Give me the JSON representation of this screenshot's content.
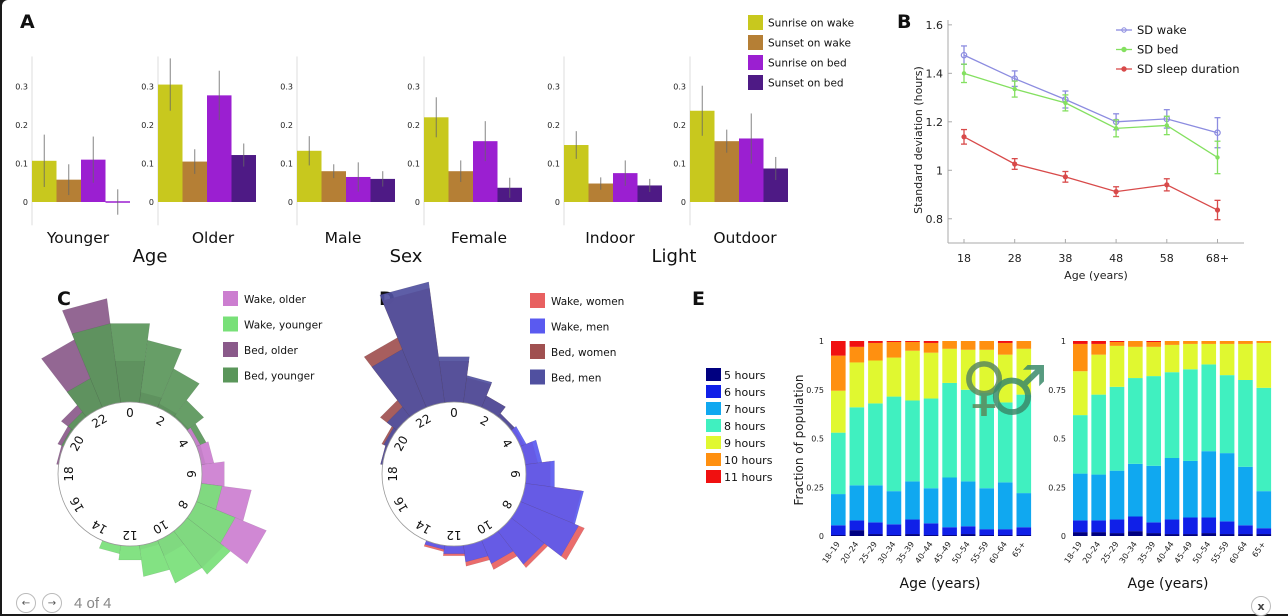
{
  "footer": {
    "prev_icon": "arrow-left-icon",
    "next_icon": "arrow-right-icon",
    "page_counter": "4 of 4",
    "close_icon": "close-icon",
    "prev_glyph": "←",
    "next_glyph": "→",
    "close_glyph": "x"
  },
  "panels": {
    "A": "A",
    "B": "B",
    "C": "C",
    "D": "D",
    "E": "E"
  },
  "chart_data": [
    {
      "id": "A",
      "type": "bar",
      "title": "",
      "ylim": [
        -0.05,
        0.37
      ],
      "yticks": [
        0,
        0.1,
        0.2,
        0.3
      ],
      "ytick_labels": [
        "0",
        "0.1",
        "0.2",
        "0.3"
      ],
      "legend": [
        "Sunrise on wake",
        "Sunset on wake",
        "Sunrise on bed",
        "Sunset on bed"
      ],
      "legend_placement": "top-right",
      "colors": [
        "#c8c81e",
        "#b57f35",
        "#9b1fd1",
        "#4e1a85"
      ],
      "groups": [
        {
          "factor": "Age",
          "categories": [
            {
              "label": "Younger",
              "values": [
                0.107,
                0.058,
                0.11,
                0.0
              ],
              "err": [
                0.068,
                0.04,
                0.06,
                0.033
              ]
            },
            {
              "label": "Older",
              "values": [
                0.305,
                0.105,
                0.277,
                0.122
              ],
              "err": [
                0.068,
                0.032,
                0.064,
                0.03
              ]
            }
          ]
        },
        {
          "factor": "Sex",
          "categories": [
            {
              "label": "Male",
              "values": [
                0.133,
                0.08,
                0.065,
                0.06
              ],
              "err": [
                0.038,
                0.018,
                0.038,
                0.02
              ]
            },
            {
              "label": "Female",
              "values": [
                0.22,
                0.08,
                0.158,
                0.037
              ],
              "err": [
                0.052,
                0.028,
                0.052,
                0.026
              ]
            }
          ]
        },
        {
          "factor": "Light",
          "categories": [
            {
              "label": "Indoor",
              "values": [
                0.148,
                0.048,
                0.075,
                0.043
              ],
              "err": [
                0.036,
                0.016,
                0.033,
                0.017
              ]
            },
            {
              "label": "Outdoor",
              "values": [
                0.237,
                0.158,
                0.165,
                0.087
              ],
              "err": [
                0.065,
                0.03,
                0.065,
                0.03
              ]
            }
          ]
        }
      ]
    },
    {
      "id": "B",
      "type": "line",
      "xlabel": "Age (years)",
      "ylabel": "Standard deviation  (hours)",
      "categories": [
        "18",
        "28",
        "38",
        "48",
        "58",
        "68+"
      ],
      "ylim": [
        0.7,
        1.62
      ],
      "yticks": [
        0.8,
        1,
        1.2,
        1.4,
        1.6
      ],
      "ytick_labels": [
        "0.8",
        "1",
        "1.2",
        "1.4",
        "1.6"
      ],
      "legend_placement": "top-right",
      "series": [
        {
          "name": "SD wake",
          "color": "#8c8ce0",
          "marker": "circle-open",
          "values": [
            1.475,
            1.378,
            1.292,
            1.2,
            1.212,
            1.155
          ],
          "err": [
            0.038,
            0.032,
            0.035,
            0.033,
            0.038,
            0.062
          ]
        },
        {
          "name": "SD bed",
          "color": "#84e060",
          "marker": "plus",
          "values": [
            1.4,
            1.335,
            1.278,
            1.173,
            1.185,
            1.053
          ],
          "err": [
            0.038,
            0.033,
            0.033,
            0.035,
            0.038,
            0.067
          ]
        },
        {
          "name": "SD sleep duration",
          "color": "#d84a4a",
          "marker": "filled",
          "values": [
            1.138,
            1.026,
            0.973,
            0.912,
            0.94,
            0.836
          ],
          "err": [
            0.03,
            0.022,
            0.022,
            0.02,
            0.025,
            0.04
          ]
        }
      ]
    },
    {
      "id": "C",
      "type": "polar-bar",
      "hour_labels": [
        "0",
        "2",
        "4",
        "6",
        "8",
        "10",
        "12",
        "14",
        "16",
        "18",
        "20",
        "22"
      ],
      "legend_placement": "top-right",
      "series": [
        {
          "name": "Wake, older",
          "color": "#cc7ed0",
          "values": [
            0,
            0,
            0,
            0,
            0.02,
            0.06,
            0.11,
            0.24,
            0.36,
            0.22,
            0.08,
            0.02,
            0,
            0,
            0,
            0,
            0,
            0,
            0,
            0,
            0,
            0,
            0,
            0
          ]
        },
        {
          "name": "Wake, younger",
          "color": "#78e078",
          "values": [
            0,
            0,
            0,
            0,
            0,
            0,
            0,
            0.1,
            0.2,
            0.26,
            0.22,
            0.15,
            0.07,
            0.04,
            0,
            0,
            0,
            0,
            0,
            0,
            0,
            0,
            0,
            0
          ]
        },
        {
          "name": "Bed, older",
          "color": "#8a5a8a",
          "values": [
            0.2,
            0.05,
            0.02,
            0.01,
            0,
            0,
            0,
            0,
            0,
            0,
            0,
            0,
            0,
            0,
            0,
            0,
            0,
            0,
            0,
            0.01,
            0.03,
            0.07,
            0.35,
            0.5
          ]
        },
        {
          "name": "Bed, younger",
          "color": "#5a965a",
          "values": [
            0.38,
            0.3,
            0.2,
            0.1,
            0.05,
            0.02,
            0,
            0,
            0,
            0,
            0,
            0,
            0,
            0,
            0,
            0,
            0,
            0,
            0,
            0,
            0.01,
            0.03,
            0.15,
            0.38
          ]
        }
      ]
    },
    {
      "id": "D",
      "type": "polar-bar",
      "hour_labels": [
        "0",
        "2",
        "4",
        "6",
        "8",
        "10",
        "12",
        "14",
        "16",
        "18",
        "20",
        "22"
      ],
      "legend_placement": "top-right",
      "series": [
        {
          "name": "Wake, women",
          "color": "#e86060",
          "values": [
            0,
            0,
            0,
            0,
            0.02,
            0.06,
            0.12,
            0.27,
            0.33,
            0.22,
            0.15,
            0.1,
            0.05,
            0.03,
            0,
            0,
            0,
            0,
            0,
            0,
            0,
            0,
            0,
            0
          ]
        },
        {
          "name": "Wake, men",
          "color": "#5a5af0",
          "values": [
            0,
            0,
            0,
            0,
            0.03,
            0.08,
            0.14,
            0.28,
            0.3,
            0.2,
            0.12,
            0.08,
            0.04,
            0.02,
            0,
            0,
            0,
            0,
            0,
            0,
            0,
            0,
            0,
            0
          ]
        },
        {
          "name": "Bed, women",
          "color": "#a05050",
          "values": [
            0.2,
            0.12,
            0.06,
            0.02,
            0.01,
            0,
            0,
            0,
            0,
            0,
            0,
            0,
            0,
            0,
            0,
            0,
            0,
            0,
            0,
            0.01,
            0.03,
            0.1,
            0.36,
            0.55
          ]
        },
        {
          "name": "Bed, men",
          "color": "#5050a0",
          "values": [
            0.22,
            0.13,
            0.06,
            0.02,
            0.01,
            0,
            0,
            0,
            0,
            0,
            0,
            0,
            0,
            0,
            0,
            0,
            0,
            0,
            0,
            0.01,
            0.02,
            0.06,
            0.3,
            0.58
          ]
        }
      ]
    },
    {
      "id": "E",
      "type": "bar",
      "stacked": true,
      "xlabel": "Age (years)",
      "ylabel": "Fraction of population",
      "ylim": [
        0,
        1
      ],
      "yticks": [
        0,
        0.25,
        0.5,
        0.75,
        1
      ],
      "ytick_labels": [
        "0",
        "0.25",
        "0.5",
        "0.75",
        "1"
      ],
      "categories": [
        "18–19",
        "20–24",
        "25–29",
        "30–34",
        "35–39",
        "40–44",
        "45–49",
        "50–54",
        "55–59",
        "60–64",
        "65+"
      ],
      "legend": [
        "5 hours",
        "6 hours",
        "7 hours",
        "8 hours",
        "9 hours",
        "10 hours",
        "11 hours"
      ],
      "legend_placement": "left",
      "colors": [
        "#000080",
        "#1020e8",
        "#10a8f0",
        "#40f0c0",
        "#e0f830",
        "#ff9010",
        "#f01010"
      ],
      "subplots": [
        {
          "name": "women",
          "symbol": "♀",
          "symbol_color": "#5a8a5a",
          "fractions": [
            [
              0.005,
              0.05,
              0.16,
              0.315,
              0.215,
              0.18,
              0.075
            ],
            [
              0.03,
              0.05,
              0.18,
              0.4,
              0.23,
              0.08,
              0.03
            ],
            [
              0.01,
              0.06,
              0.19,
              0.42,
              0.22,
              0.09,
              0.01
            ],
            [
              0.005,
              0.055,
              0.17,
              0.485,
              0.2,
              0.08,
              0.005
            ],
            [
              0.01,
              0.075,
              0.195,
              0.415,
              0.255,
              0.045,
              0.005
            ],
            [
              0.005,
              0.06,
              0.18,
              0.46,
              0.235,
              0.05,
              0.01
            ],
            [
              0.005,
              0.04,
              0.255,
              0.485,
              0.175,
              0.04,
              0.0
            ],
            [
              0.01,
              0.04,
              0.23,
              0.47,
              0.205,
              0.045,
              0.0
            ],
            [
              0.005,
              0.03,
              0.21,
              0.49,
              0.22,
              0.045,
              0.0
            ],
            [
              0.005,
              0.03,
              0.24,
              0.41,
              0.245,
              0.06,
              0.01
            ],
            [
              0.005,
              0.04,
              0.175,
              0.505,
              0.235,
              0.04,
              0.0
            ]
          ]
        },
        {
          "name": "men",
          "symbol": "♂",
          "symbol_color": "#3a8a6a",
          "fractions": [
            [
              0.02,
              0.06,
              0.24,
              0.3,
              0.225,
              0.14,
              0.015
            ],
            [
              0.02,
              0.06,
              0.235,
              0.41,
              0.205,
              0.055,
              0.015
            ],
            [
              0.015,
              0.07,
              0.25,
              0.43,
              0.21,
              0.02,
              0.005
            ],
            [
              0.025,
              0.075,
              0.27,
              0.44,
              0.16,
              0.03,
              0.0
            ],
            [
              0.015,
              0.055,
              0.29,
              0.46,
              0.15,
              0.025,
              0.005
            ],
            [
              0.01,
              0.075,
              0.315,
              0.44,
              0.14,
              0.02,
              0.0
            ],
            [
              0.01,
              0.085,
              0.29,
              0.47,
              0.13,
              0.015,
              0.0
            ],
            [
              0.015,
              0.08,
              0.34,
              0.445,
              0.105,
              0.015,
              0.0
            ],
            [
              0.01,
              0.065,
              0.35,
              0.4,
              0.16,
              0.015,
              0.0
            ],
            [
              0.01,
              0.045,
              0.3,
              0.445,
              0.185,
              0.015,
              0.0
            ],
            [
              0.01,
              0.03,
              0.19,
              0.53,
              0.23,
              0.01,
              0.0
            ]
          ]
        }
      ]
    }
  ]
}
